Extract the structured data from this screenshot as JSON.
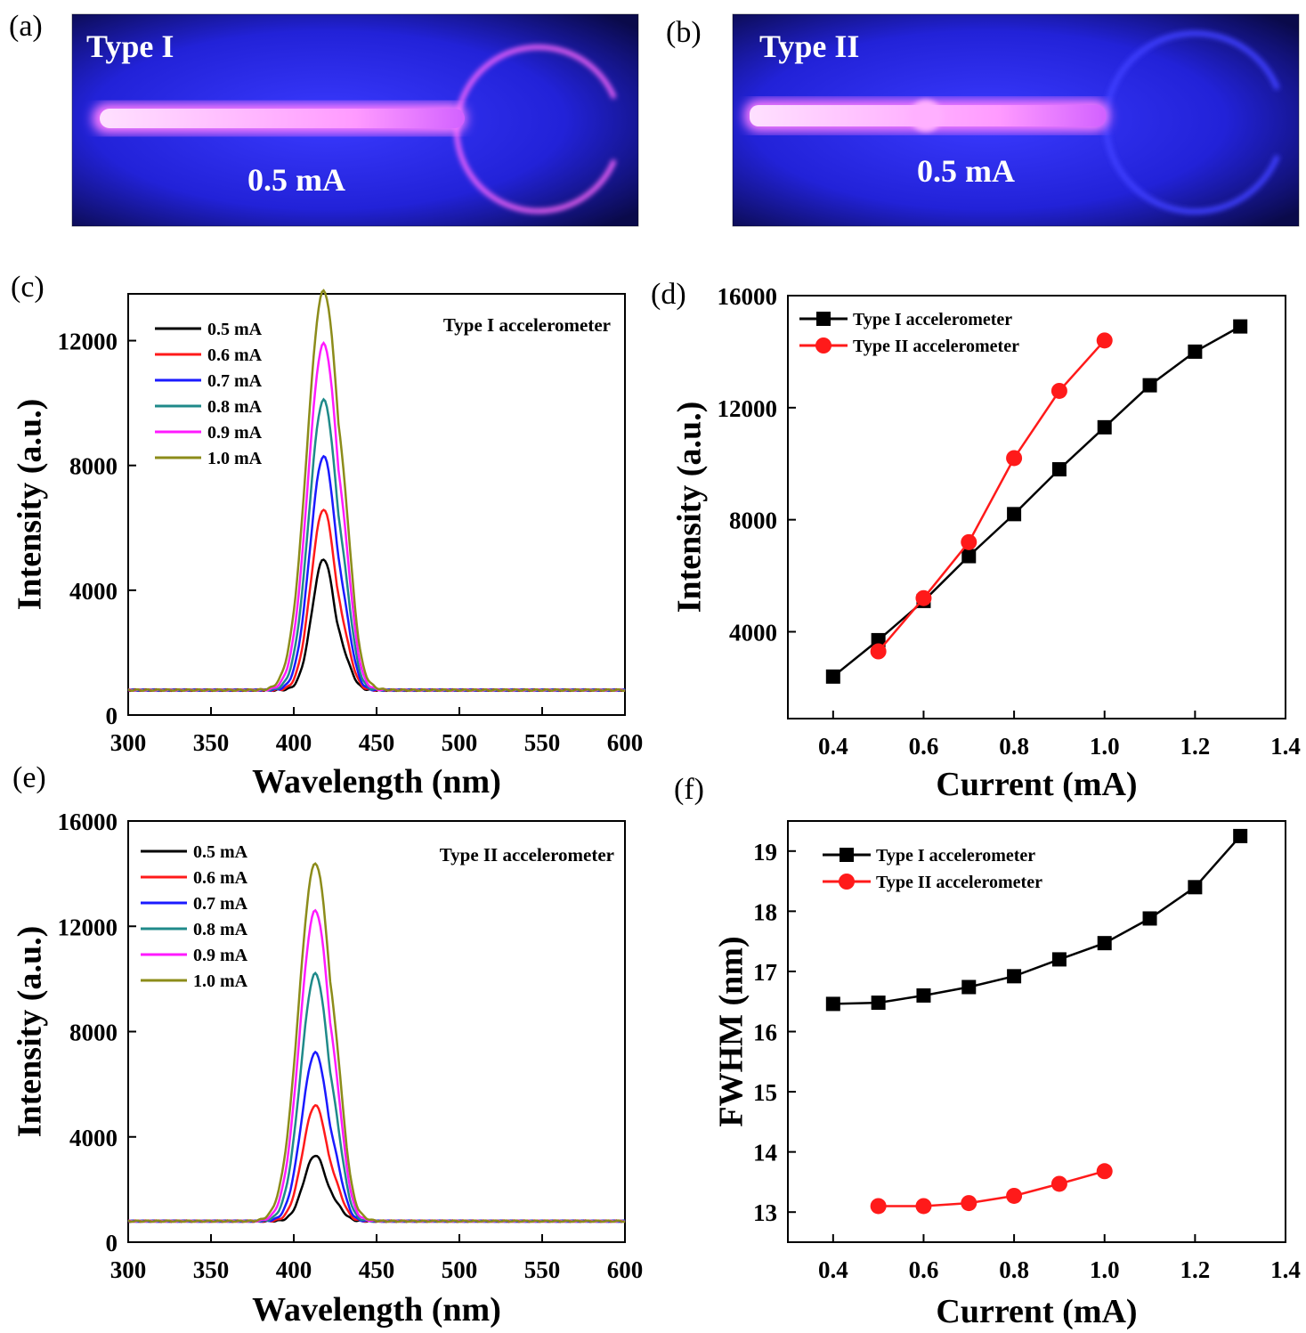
{
  "panels": {
    "a": {
      "label": "(a)",
      "type_label": "Type I",
      "current_label": "0.5 mA"
    },
    "b": {
      "label": "(b)",
      "type_label": "Type II",
      "current_label": "0.5 mA"
    },
    "c": {
      "label": "(c)"
    },
    "d": {
      "label": "(d)"
    },
    "e": {
      "label": "(e)"
    },
    "f": {
      "label": "(f)"
    }
  },
  "colors": {
    "black": "#000000",
    "red": "#ff1a1a",
    "blue": "#1a1aff",
    "teal": "#1f8a8a",
    "magenta": "#ff1aff",
    "olive": "#8c8c1a",
    "photo_bg": "#0b0b6e",
    "glow": "#ffd6ff"
  },
  "chart_data": [
    {
      "id": "c",
      "type": "line",
      "title": "Type I accelerometer",
      "xlabel": "Wavelength (nm)",
      "ylabel": "Intensity (a.u.)",
      "xlim": [
        300,
        600
      ],
      "ylim": [
        0,
        13500
      ],
      "xticks": [
        300,
        350,
        400,
        450,
        500,
        550,
        600
      ],
      "yticks": [
        0,
        4000,
        8000,
        12000
      ],
      "baseline": 800,
      "peak_nm": 418,
      "series": [
        {
          "name": "0.5 mA",
          "color": "#000000",
          "peak": 5000
        },
        {
          "name": "0.6 mA",
          "color": "#ff1a1a",
          "peak": 6600
        },
        {
          "name": "0.7 mA",
          "color": "#1a1aff",
          "peak": 8300
        },
        {
          "name": "0.8 mA",
          "color": "#1f8a8a",
          "peak": 10100
        },
        {
          "name": "0.9 mA",
          "color": "#ff1aff",
          "peak": 11900
        },
        {
          "name": "1.0 mA",
          "color": "#8c8c1a",
          "peak": 13600
        }
      ]
    },
    {
      "id": "d",
      "type": "line",
      "xlabel": "Current (mA)",
      "ylabel": "Intensity (a.u.)",
      "xlim": [
        0.3,
        1.4
      ],
      "ylim": [
        900,
        16000
      ],
      "xticks": [
        0.4,
        0.6,
        0.8,
        1.0,
        1.2,
        1.4
      ],
      "yticks": [
        4000,
        8000,
        12000,
        16000
      ],
      "series": [
        {
          "name": "Type I accelerometer",
          "color": "#000000",
          "marker": "square",
          "x": [
            0.4,
            0.5,
            0.6,
            0.7,
            0.8,
            0.9,
            1.0,
            1.1,
            1.2,
            1.3
          ],
          "y": [
            2400,
            3700,
            5100,
            6700,
            8200,
            9800,
            11300,
            12800,
            14000,
            14900
          ]
        },
        {
          "name": "Type  II accelerometer",
          "color": "#ff1a1a",
          "marker": "circle",
          "x": [
            0.5,
            0.6,
            0.7,
            0.8,
            0.9,
            1.0
          ],
          "y": [
            3300,
            5200,
            7200,
            10200,
            12600,
            14400
          ]
        }
      ]
    },
    {
      "id": "e",
      "type": "line",
      "title": "Type II accelerometer",
      "xlabel": "Wavelength (nm)",
      "ylabel": "Intensity (a.u.)",
      "xlim": [
        300,
        600
      ],
      "ylim": [
        0,
        16000
      ],
      "xticks": [
        300,
        350,
        400,
        450,
        500,
        550,
        600
      ],
      "yticks": [
        0,
        4000,
        8000,
        12000,
        16000
      ],
      "baseline": 800,
      "peak_nm": 413,
      "series": [
        {
          "name": "0.5 mA",
          "color": "#000000",
          "peak": 3300
        },
        {
          "name": "0.6 mA",
          "color": "#ff1a1a",
          "peak": 5200
        },
        {
          "name": "0.7 mA",
          "color": "#1a1aff",
          "peak": 7200
        },
        {
          "name": "0.8 mA",
          "color": "#1f8a8a",
          "peak": 10200
        },
        {
          "name": "0.9 mA",
          "color": "#ff1aff",
          "peak": 12600
        },
        {
          "name": "1.0 mA",
          "color": "#8c8c1a",
          "peak": 14400
        }
      ]
    },
    {
      "id": "f",
      "type": "line",
      "xlabel": "Current (mA)",
      "ylabel": "FWHM (nm)",
      "xlim": [
        0.3,
        1.4
      ],
      "ylim": [
        12.5,
        19.5
      ],
      "xticks": [
        0.4,
        0.6,
        0.8,
        1.0,
        1.2,
        1.4
      ],
      "yticks": [
        13,
        14,
        15,
        16,
        17,
        18,
        19
      ],
      "series": [
        {
          "name": "Type I accelerometer",
          "color": "#000000",
          "marker": "square",
          "x": [
            0.4,
            0.5,
            0.6,
            0.7,
            0.8,
            0.9,
            1.0,
            1.1,
            1.2,
            1.3
          ],
          "y": [
            16.46,
            16.48,
            16.6,
            16.74,
            16.92,
            17.2,
            17.47,
            17.88,
            18.4,
            19.25
          ]
        },
        {
          "name": "Type II accelerometer",
          "color": "#ff1a1a",
          "marker": "circle",
          "x": [
            0.5,
            0.6,
            0.7,
            0.8,
            0.9,
            1.0
          ],
          "y": [
            13.1,
            13.1,
            13.15,
            13.27,
            13.47,
            13.68
          ]
        }
      ]
    }
  ]
}
